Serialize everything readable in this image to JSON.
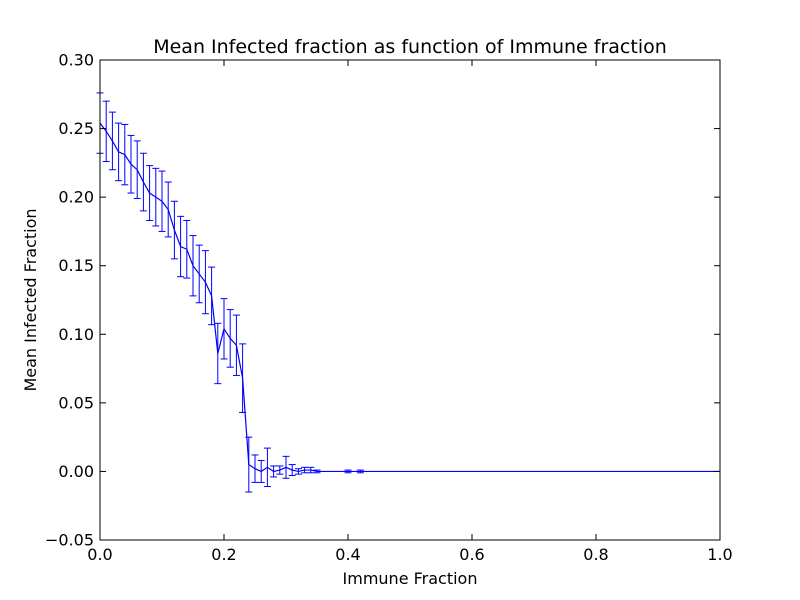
{
  "chart_data": {
    "type": "line",
    "title": "Mean Infected fraction as function of Immune fraction",
    "xlabel": "Immune Fraction",
    "ylabel": "Mean Infected Fraction",
    "xlim": [
      0,
      1
    ],
    "ylim": [
      -0.05,
      0.3
    ],
    "xticks": [
      0.0,
      0.2,
      0.4,
      0.6,
      0.8,
      1.0
    ],
    "xtick_labels": [
      "0.0",
      "0.2",
      "0.4",
      "0.6",
      "0.8",
      "1.0"
    ],
    "yticks": [
      -0.05,
      0.0,
      0.05,
      0.1,
      0.15,
      0.2,
      0.25,
      0.3
    ],
    "ytick_labels": [
      "−0.05",
      "0.00",
      "0.05",
      "0.10",
      "0.15",
      "0.20",
      "0.25",
      "0.30"
    ],
    "grid": false,
    "line_color": "#0000ff",
    "series": [
      {
        "x": [
          0.0,
          0.01,
          0.02,
          0.03,
          0.04,
          0.05,
          0.06,
          0.07,
          0.08,
          0.09,
          0.1,
          0.11,
          0.12,
          0.13,
          0.14,
          0.15,
          0.16,
          0.17,
          0.18,
          0.19,
          0.2,
          0.21,
          0.22,
          0.23,
          0.24,
          0.25,
          0.26,
          0.27,
          0.28,
          0.29,
          0.3,
          0.31,
          0.32,
          0.33,
          0.34,
          0.35,
          0.36,
          0.37,
          0.38,
          0.39,
          0.4,
          0.41,
          0.42,
          0.43,
          0.44,
          0.45,
          0.46,
          0.47,
          0.48,
          0.49,
          0.5,
          0.51,
          0.52,
          0.53,
          0.54,
          0.55,
          0.56,
          0.57,
          0.58,
          0.59,
          0.6,
          0.61,
          0.62,
          0.63,
          0.64,
          0.65,
          0.66,
          0.67,
          0.68,
          0.69,
          0.7,
          0.71,
          0.72,
          0.73,
          0.74,
          0.75,
          0.76,
          0.77,
          0.78,
          0.79,
          0.8,
          0.81,
          0.82,
          0.83,
          0.84,
          0.85,
          0.86,
          0.87,
          0.88,
          0.89,
          0.9,
          0.91,
          0.92,
          0.93,
          0.94,
          0.95,
          0.96,
          0.97,
          0.98,
          0.99,
          1.0
        ],
        "y": [
          0.254,
          0.248,
          0.241,
          0.233,
          0.231,
          0.224,
          0.22,
          0.211,
          0.203,
          0.2,
          0.197,
          0.191,
          0.176,
          0.164,
          0.162,
          0.15,
          0.144,
          0.138,
          0.128,
          0.086,
          0.104,
          0.097,
          0.092,
          0.068,
          0.005,
          0.002,
          0.0,
          0.003,
          0.0,
          0.001,
          0.003,
          0.001,
          0.0,
          0.001,
          0.001,
          0.0,
          0.0,
          0.0,
          0.0,
          0.0,
          0.0,
          0.0,
          0.0,
          0.0,
          0.0,
          0.0,
          0.0,
          0.0,
          0.0,
          0.0,
          0.0,
          0.0,
          0.0,
          0.0,
          0.0,
          0.0,
          0.0,
          0.0,
          0.0,
          0.0,
          0.0,
          0.0,
          0.0,
          0.0,
          0.0,
          0.0,
          0.0,
          0.0,
          0.0,
          0.0,
          0.0,
          0.0,
          0.0,
          0.0,
          0.0,
          0.0,
          0.0,
          0.0,
          0.0,
          0.0,
          0.0,
          0.0,
          0.0,
          0.0,
          0.0,
          0.0,
          0.0,
          0.0,
          0.0,
          0.0,
          0.0,
          0.0,
          0.0,
          0.0,
          0.0,
          0.0,
          0.0,
          0.0,
          0.0,
          0.0,
          0.0
        ],
        "yerr": [
          0.022,
          0.022,
          0.021,
          0.021,
          0.022,
          0.021,
          0.021,
          0.021,
          0.02,
          0.021,
          0.022,
          0.02,
          0.021,
          0.022,
          0.021,
          0.022,
          0.021,
          0.023,
          0.021,
          0.022,
          0.022,
          0.021,
          0.022,
          0.025,
          0.02,
          0.01,
          0.008,
          0.014,
          0.004,
          0.003,
          0.008,
          0.004,
          0.002,
          0.002,
          0.002,
          0.001,
          0.0,
          0.0,
          0.0,
          0.0,
          0.001,
          0.0,
          0.001,
          0.0,
          0.0,
          0.0,
          0.0,
          0.0,
          0.0,
          0.0,
          0.0,
          0.0,
          0.0,
          0.0,
          0.0,
          0.0,
          0.0,
          0.0,
          0.0,
          0.0,
          0.0,
          0.0,
          0.0,
          0.0,
          0.0,
          0.0,
          0.0,
          0.0,
          0.0,
          0.0,
          0.0,
          0.0,
          0.0,
          0.0,
          0.0,
          0.0,
          0.0,
          0.0,
          0.0,
          0.0,
          0.0,
          0.0,
          0.0,
          0.0,
          0.0,
          0.0,
          0.0,
          0.0,
          0.0,
          0.0,
          0.0,
          0.0,
          0.0,
          0.0,
          0.0,
          0.0,
          0.0,
          0.0,
          0.0,
          0.0,
          0.0
        ]
      }
    ]
  }
}
